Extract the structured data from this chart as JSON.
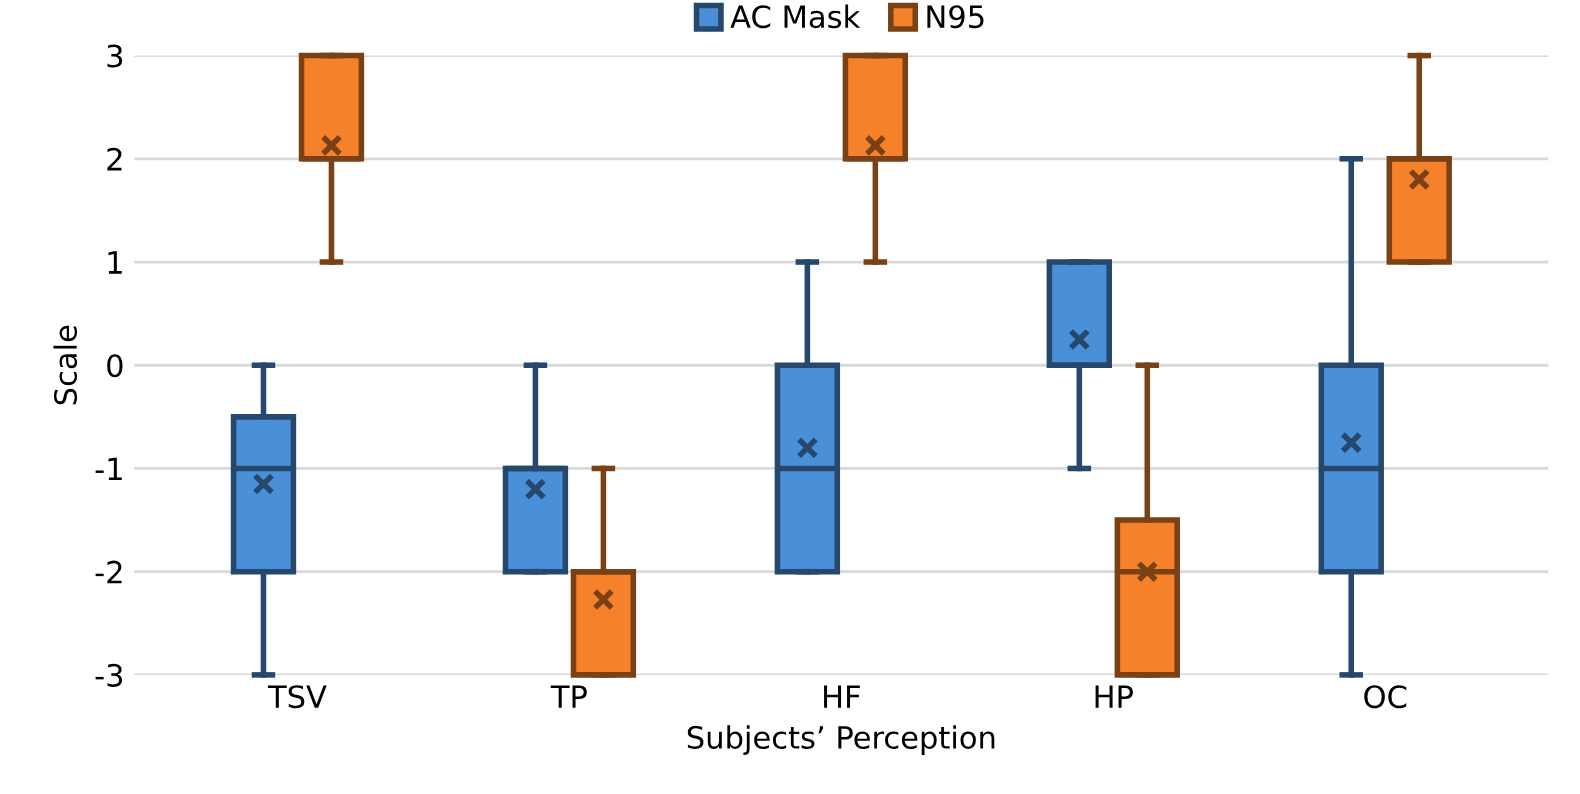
{
  "chart_data": {
    "type": "box",
    "xlabel": "Subjects’ Perception",
    "ylabel": "Scale",
    "categories": [
      "TSV",
      "TP",
      "HF",
      "HP",
      "OC"
    ],
    "series": [
      {
        "name": "AC Mask",
        "color": "#4a90d9",
        "boxes": [
          {
            "low": -3,
            "q1": -2,
            "median": -1,
            "q3": -0.5,
            "high": 0,
            "mean": -1.15
          },
          {
            "low": -2,
            "q1": -2,
            "median": -1,
            "q3": -1,
            "high": 0,
            "mean": -1.2
          },
          {
            "low": -2,
            "q1": -2,
            "median": -1,
            "q3": 0,
            "high": 1,
            "mean": -0.8
          },
          {
            "low": -1,
            "q1": 0,
            "median": 0,
            "q3": 1,
            "high": 1,
            "mean": 0.25
          },
          {
            "low": -3,
            "q1": -2,
            "median": -1,
            "q3": 0,
            "high": 2,
            "mean": -0.75
          }
        ]
      },
      {
        "name": "N95",
        "color": "#f5822a",
        "boxes": [
          {
            "low": 1,
            "q1": 2,
            "median": 2,
            "q3": 3,
            "high": 3,
            "mean": 2.13
          },
          {
            "low": -3,
            "q1": -3,
            "median": -2,
            "q3": -2,
            "high": -1,
            "mean": -2.27
          },
          {
            "low": 1,
            "q1": 2,
            "median": 2,
            "q3": 3,
            "high": 3,
            "mean": 2.13
          },
          {
            "low": -3,
            "q1": -3,
            "median": -2,
            "q3": -1.5,
            "high": 0,
            "mean": -2
          },
          {
            "low": 1,
            "q1": 1,
            "median": 2,
            "q3": 2,
            "high": 3,
            "mean": 1.8
          }
        ]
      }
    ],
    "ylim": [
      -3,
      3
    ],
    "yticks": [
      -3,
      -2,
      -1,
      0,
      1,
      2,
      3
    ],
    "grid": "y",
    "legend": "top",
    "marker": "cross"
  }
}
